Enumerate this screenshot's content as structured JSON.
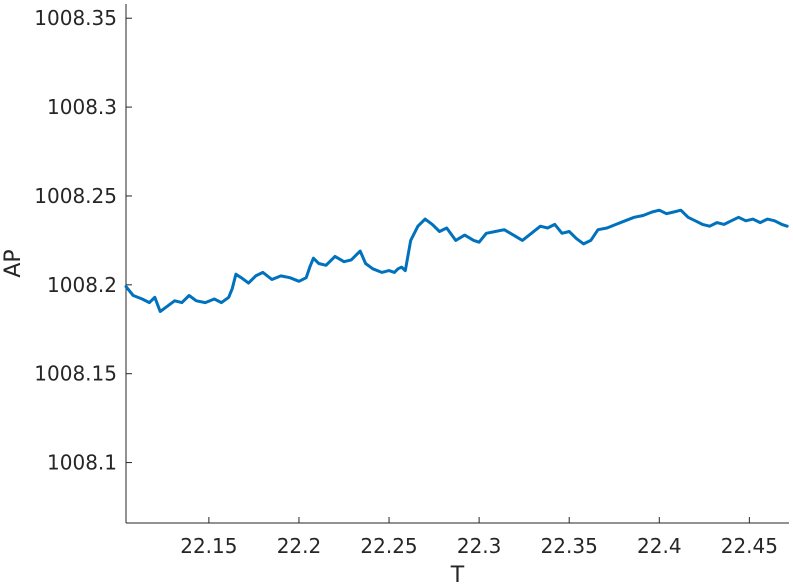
{
  "chart_data": {
    "type": "line",
    "title": "",
    "xlabel": "T",
    "ylabel": "AP",
    "xlim": [
      22.104,
      22.472
    ],
    "ylim": [
      1008.066,
      1008.358
    ],
    "xticks": [
      22.15,
      22.2,
      22.25,
      22.3,
      22.35,
      22.4,
      22.45
    ],
    "xtick_labels": [
      "22.15",
      "22.2",
      "22.25",
      "22.3",
      "22.35",
      "22.4",
      "22.45"
    ],
    "yticks": [
      1008.1,
      1008.15,
      1008.2,
      1008.25,
      1008.3,
      1008.35
    ],
    "ytick_labels": [
      "1008.1",
      "1008.15",
      "1008.2",
      "1008.25",
      "1008.3",
      "1008.35"
    ],
    "grid": false,
    "line_color": "#0072BD",
    "series": [
      {
        "x": [
          22.104,
          22.108,
          22.113,
          22.117,
          22.12,
          22.123,
          22.127,
          22.131,
          22.135,
          22.139,
          22.143,
          22.148,
          22.153,
          22.157,
          22.161,
          22.163,
          22.165,
          22.168,
          22.172,
          22.176,
          22.18,
          22.185,
          22.19,
          22.195,
          22.2,
          22.204,
          22.206,
          22.208,
          22.211,
          22.215,
          22.22,
          22.225,
          22.229,
          22.232,
          22.234,
          22.237,
          22.241,
          22.246,
          22.25,
          22.253,
          22.255,
          22.257,
          22.259,
          22.262,
          22.266,
          22.27,
          22.274,
          22.278,
          22.282,
          22.287,
          22.292,
          22.297,
          22.3,
          22.304,
          22.309,
          22.314,
          22.319,
          22.324,
          22.329,
          22.334,
          22.338,
          22.342,
          22.346,
          22.35,
          22.354,
          22.358,
          22.362,
          22.366,
          22.371,
          22.376,
          22.381,
          22.386,
          22.391,
          22.396,
          22.4,
          22.404,
          22.408,
          22.412,
          22.416,
          22.42,
          22.424,
          22.428,
          22.432,
          22.436,
          22.44,
          22.444,
          22.448,
          22.452,
          22.456,
          22.46,
          22.464,
          22.468,
          22.471
        ],
        "y": [
          1008.199,
          1008.194,
          1008.192,
          1008.19,
          1008.193,
          1008.185,
          1008.188,
          1008.191,
          1008.19,
          1008.194,
          1008.191,
          1008.19,
          1008.192,
          1008.19,
          1008.193,
          1008.198,
          1008.206,
          1008.204,
          1008.201,
          1008.205,
          1008.207,
          1008.203,
          1008.205,
          1008.204,
          1008.202,
          1008.204,
          1008.21,
          1008.215,
          1008.212,
          1008.211,
          1008.216,
          1008.213,
          1008.214,
          1008.217,
          1008.219,
          1008.212,
          1008.209,
          1008.207,
          1008.208,
          1008.207,
          1008.209,
          1008.21,
          1008.208,
          1008.225,
          1008.233,
          1008.237,
          1008.234,
          1008.23,
          1008.232,
          1008.225,
          1008.228,
          1008.225,
          1008.224,
          1008.229,
          1008.23,
          1008.231,
          1008.228,
          1008.225,
          1008.229,
          1008.233,
          1008.232,
          1008.234,
          1008.229,
          1008.23,
          1008.226,
          1008.223,
          1008.225,
          1008.231,
          1008.232,
          1008.234,
          1008.236,
          1008.238,
          1008.239,
          1008.241,
          1008.242,
          1008.24,
          1008.241,
          1008.242,
          1008.238,
          1008.236,
          1008.234,
          1008.233,
          1008.235,
          1008.234,
          1008.236,
          1008.238,
          1008.236,
          1008.237,
          1008.235,
          1008.237,
          1008.236,
          1008.234,
          1008.233
        ]
      }
    ]
  }
}
